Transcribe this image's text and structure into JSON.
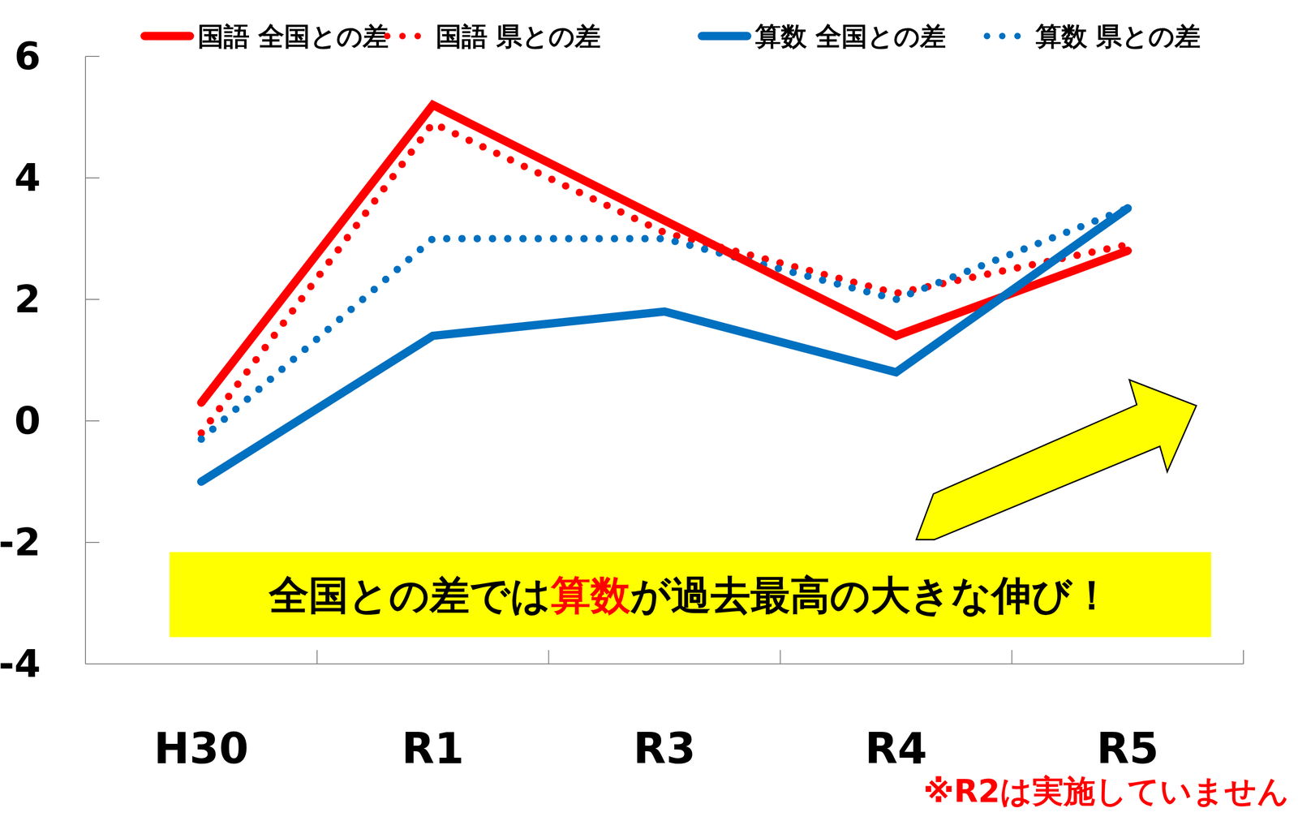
{
  "chart_data": {
    "type": "line",
    "categories": [
      "H30",
      "R1",
      "R3",
      "R4",
      "R5"
    ],
    "series": [
      {
        "name": "国語 全国との差",
        "color": "#ff0000",
        "line_style": "solid",
        "values": [
          0.3,
          5.2,
          3.3,
          1.4,
          2.8
        ]
      },
      {
        "name": "国語 県との差",
        "color": "#ff0000",
        "line_style": "dotted",
        "values": [
          -0.2,
          4.9,
          3.1,
          2.1,
          2.9
        ]
      },
      {
        "name": "算数 全国との差",
        "color": "#0070c0",
        "line_style": "solid",
        "values": [
          -1.0,
          1.4,
          1.8,
          0.8,
          3.5
        ]
      },
      {
        "name": "算数 県との差",
        "color": "#0070c0",
        "line_style": "dotted",
        "values": [
          -0.3,
          3.0,
          3.0,
          2.0,
          3.5
        ]
      }
    ],
    "ylim": [
      -4,
      6
    ],
    "yticks": [
      -4,
      -2,
      0,
      2,
      4,
      6
    ],
    "grid": false,
    "legend": "top",
    "annotations": [
      {
        "text": "全国との差では算数が過去最高の大きな伸び！",
        "highlight": "算数"
      },
      {
        "text": "※R2は実施していません"
      }
    ]
  }
}
